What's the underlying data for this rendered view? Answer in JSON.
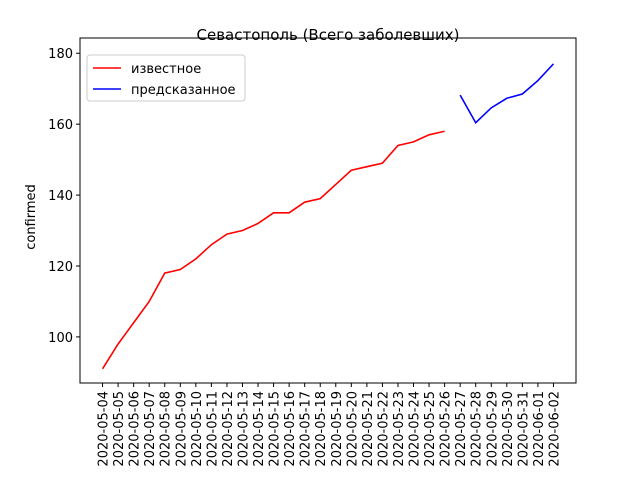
{
  "chart_data": {
    "type": "line",
    "title": "Севастополь (Всего заболевших)",
    "y_label": "confirmed",
    "categories": [
      "2020-05-04",
      "2020-05-05",
      "2020-05-06",
      "2020-05-07",
      "2020-05-08",
      "2020-05-09",
      "2020-05-10",
      "2020-05-11",
      "2020-05-12",
      "2020-05-13",
      "2020-05-14",
      "2020-05-15",
      "2020-05-16",
      "2020-05-17",
      "2020-05-18",
      "2020-05-19",
      "2020-05-20",
      "2020-05-21",
      "2020-05-22",
      "2020-05-23",
      "2020-05-24",
      "2020-05-25",
      "2020-05-26",
      "2020-05-27",
      "2020-05-28",
      "2020-05-29",
      "2020-05-30",
      "2020-05-31",
      "2020-06-01",
      "2020-06-02"
    ],
    "series": [
      {
        "name": "известное",
        "color": "#ff0000",
        "values": [
          91,
          98,
          104,
          110,
          118,
          119,
          122,
          126,
          129,
          130,
          132,
          135,
          135,
          138,
          139,
          143,
          147,
          148,
          149,
          154,
          155,
          157,
          158,
          null,
          null,
          null,
          null,
          null,
          null,
          null
        ]
      },
      {
        "name": "предсказанное",
        "color": "#0000ff",
        "values": [
          null,
          null,
          null,
          null,
          null,
          null,
          null,
          null,
          null,
          null,
          null,
          null,
          null,
          null,
          null,
          null,
          null,
          null,
          null,
          null,
          null,
          null,
          null,
          168.2,
          160.4,
          164.6,
          167.3,
          168.5,
          172.3,
          177
        ]
      }
    ],
    "ylim": [
      87,
      184.3
    ],
    "yticks": [
      100,
      120,
      140,
      160,
      180
    ],
    "legend": "upper left"
  }
}
